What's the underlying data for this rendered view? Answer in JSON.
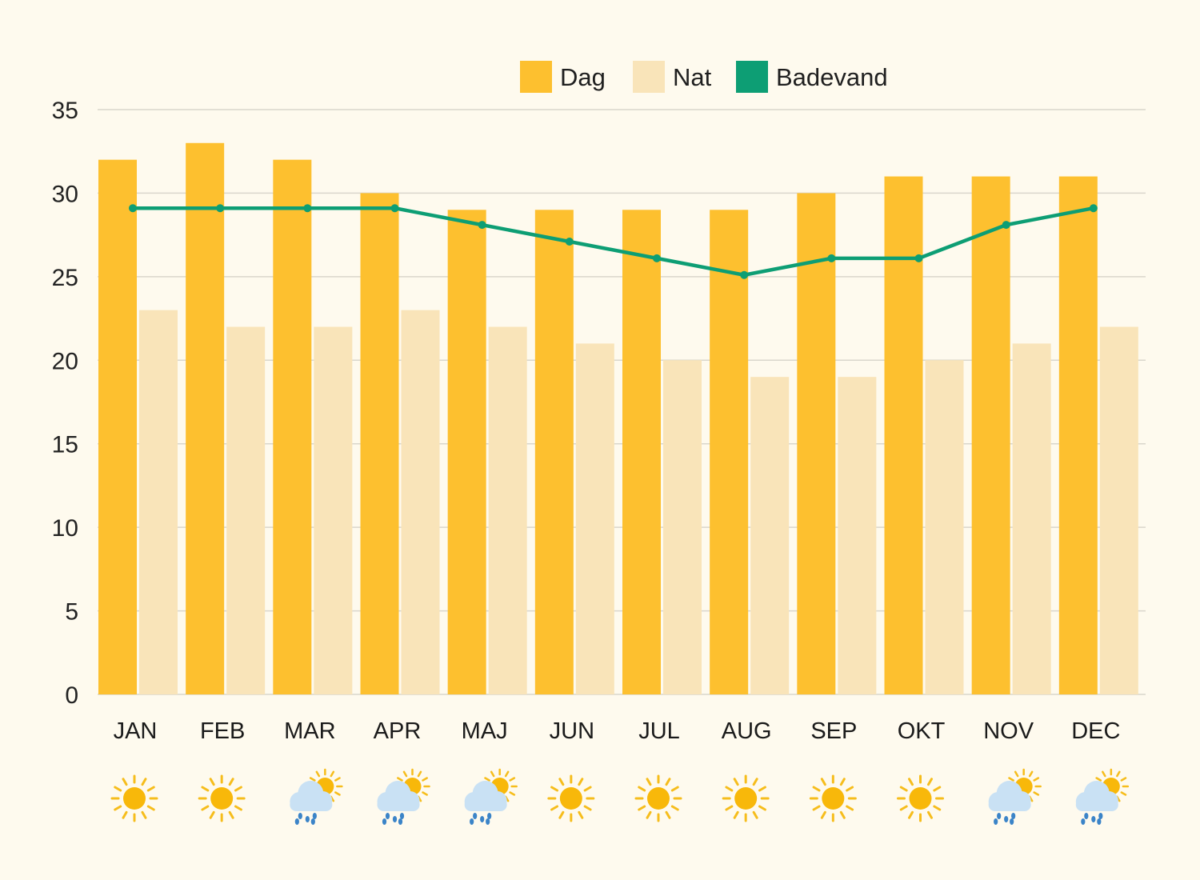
{
  "colors": {
    "background": "#fefaee",
    "dag": "#fdc02f",
    "nat": "#f9e4b9",
    "badevand": "#0d9e74",
    "grid": "#d9d6cc",
    "sun": "#f8b80a",
    "sun_ray": "#f6bd1c",
    "cloud": "#c9e1f4",
    "rain": "#3b84c8"
  },
  "chart_data": {
    "type": "bar",
    "categories": [
      "JAN",
      "FEB",
      "MAR",
      "APR",
      "MAJ",
      "JUN",
      "JUL",
      "AUG",
      "SEP",
      "OKT",
      "NOV",
      "DEC"
    ],
    "series": [
      {
        "name": "Dag",
        "kind": "bar",
        "values": [
          32,
          33,
          32,
          30,
          29,
          29,
          29,
          29,
          30,
          31,
          31,
          31
        ]
      },
      {
        "name": "Nat",
        "kind": "bar",
        "values": [
          23,
          22,
          22,
          23,
          22,
          21,
          20,
          19,
          19,
          20,
          21,
          22
        ]
      },
      {
        "name": "Badevand",
        "kind": "line",
        "values": [
          29.1,
          29.1,
          29.1,
          29.1,
          28.1,
          27.1,
          26.1,
          25.1,
          26.1,
          26.1,
          28.1,
          29.1
        ]
      }
    ],
    "yticks": [
      "0",
      "5",
      "10",
      "15",
      "20",
      "25",
      "30",
      "35"
    ],
    "ylim": [
      0,
      35
    ],
    "grid": true,
    "legend_position": "top-right",
    "weather_icons": [
      "sun-icon",
      "sun-icon",
      "rain-sun-icon",
      "rain-sun-icon",
      "rain-sun-icon",
      "sun-icon",
      "sun-icon",
      "sun-icon",
      "sun-icon",
      "sun-icon",
      "rain-sun-icon",
      "rain-sun-icon"
    ]
  }
}
